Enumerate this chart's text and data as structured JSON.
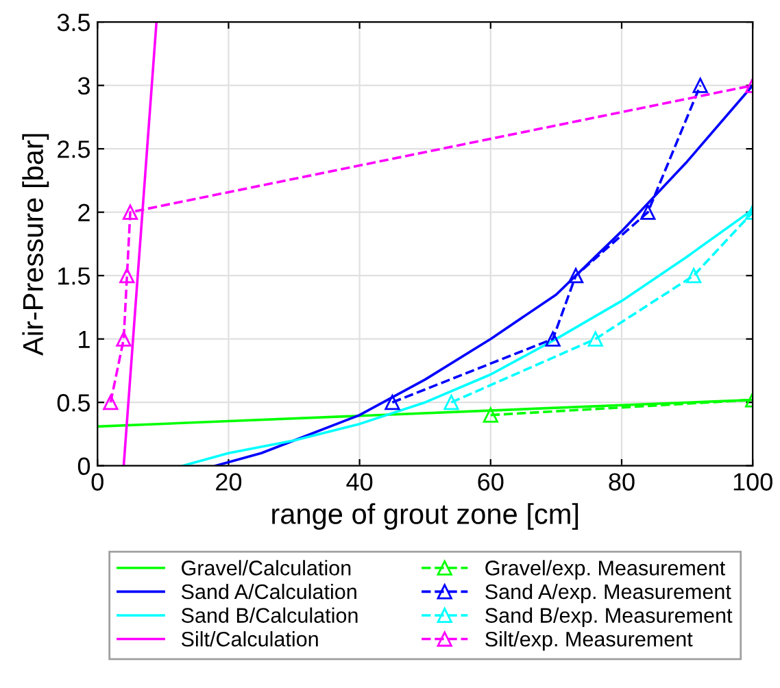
{
  "chart_data": {
    "type": "line",
    "xlabel": "range of grout zone [cm]",
    "ylabel": "Air-Pressure [bar]",
    "xlim": [
      0,
      100
    ],
    "ylim": [
      0,
      3.5
    ],
    "xticks": [
      0,
      20,
      40,
      60,
      80,
      100
    ],
    "yticks": [
      0,
      0.5,
      1,
      1.5,
      2,
      2.5,
      3,
      3.5
    ],
    "grid": true,
    "legend": "bottom",
    "series": [
      {
        "name": "Gravel/Calculation",
        "color": "#00ff00",
        "x": [
          0,
          100
        ],
        "values": [
          0.31,
          0.52
        ],
        "line_style": "solid"
      },
      {
        "name": "Sand A/Calculation",
        "color": "#0000ff",
        "x": [
          18,
          25,
          30,
          40,
          50,
          60,
          70,
          80,
          90,
          100
        ],
        "values": [
          0,
          0.1,
          0.2,
          0.4,
          0.68,
          1.0,
          1.35,
          1.85,
          2.4,
          3.0
        ],
        "line_style": "solid"
      },
      {
        "name": "Sand B/Calculation",
        "color": "#00ffff",
        "x": [
          13,
          20,
          30,
          40,
          50,
          60,
          70,
          80,
          90,
          100
        ],
        "values": [
          0,
          0.1,
          0.2,
          0.33,
          0.5,
          0.72,
          1.0,
          1.3,
          1.65,
          2.02
        ],
        "line_style": "solid"
      },
      {
        "name": "Silt/Calculation",
        "color": "#ff00ff",
        "x": [
          4,
          9
        ],
        "values": [
          0,
          3.5
        ],
        "line_style": "solid"
      },
      {
        "name": "Gravel/exp. Measurement",
        "color": "#00ff00",
        "x": [
          60,
          100
        ],
        "values": [
          0.4,
          0.52
        ],
        "line_style": "dashed",
        "marker": "triangle"
      },
      {
        "name": "Sand A/exp. Measurement",
        "color": "#0000ff",
        "x": [
          45,
          69.5,
          73,
          84,
          92
        ],
        "values": [
          0.5,
          1,
          1.5,
          2,
          3
        ],
        "line_style": "dashed",
        "marker": "triangle"
      },
      {
        "name": "Sand B/exp. Measurement",
        "color": "#00ffff",
        "x": [
          54,
          76,
          91,
          100
        ],
        "values": [
          0.5,
          1,
          1.5,
          2
        ],
        "line_style": "dashed",
        "marker": "triangle"
      },
      {
        "name": "Silt/exp. Measurement",
        "color": "#ff00ff",
        "x": [
          2,
          4,
          4.5,
          5,
          100
        ],
        "values": [
          0.5,
          1,
          1.5,
          2,
          3
        ],
        "line_style": "dashed",
        "marker": "triangle"
      }
    ]
  }
}
